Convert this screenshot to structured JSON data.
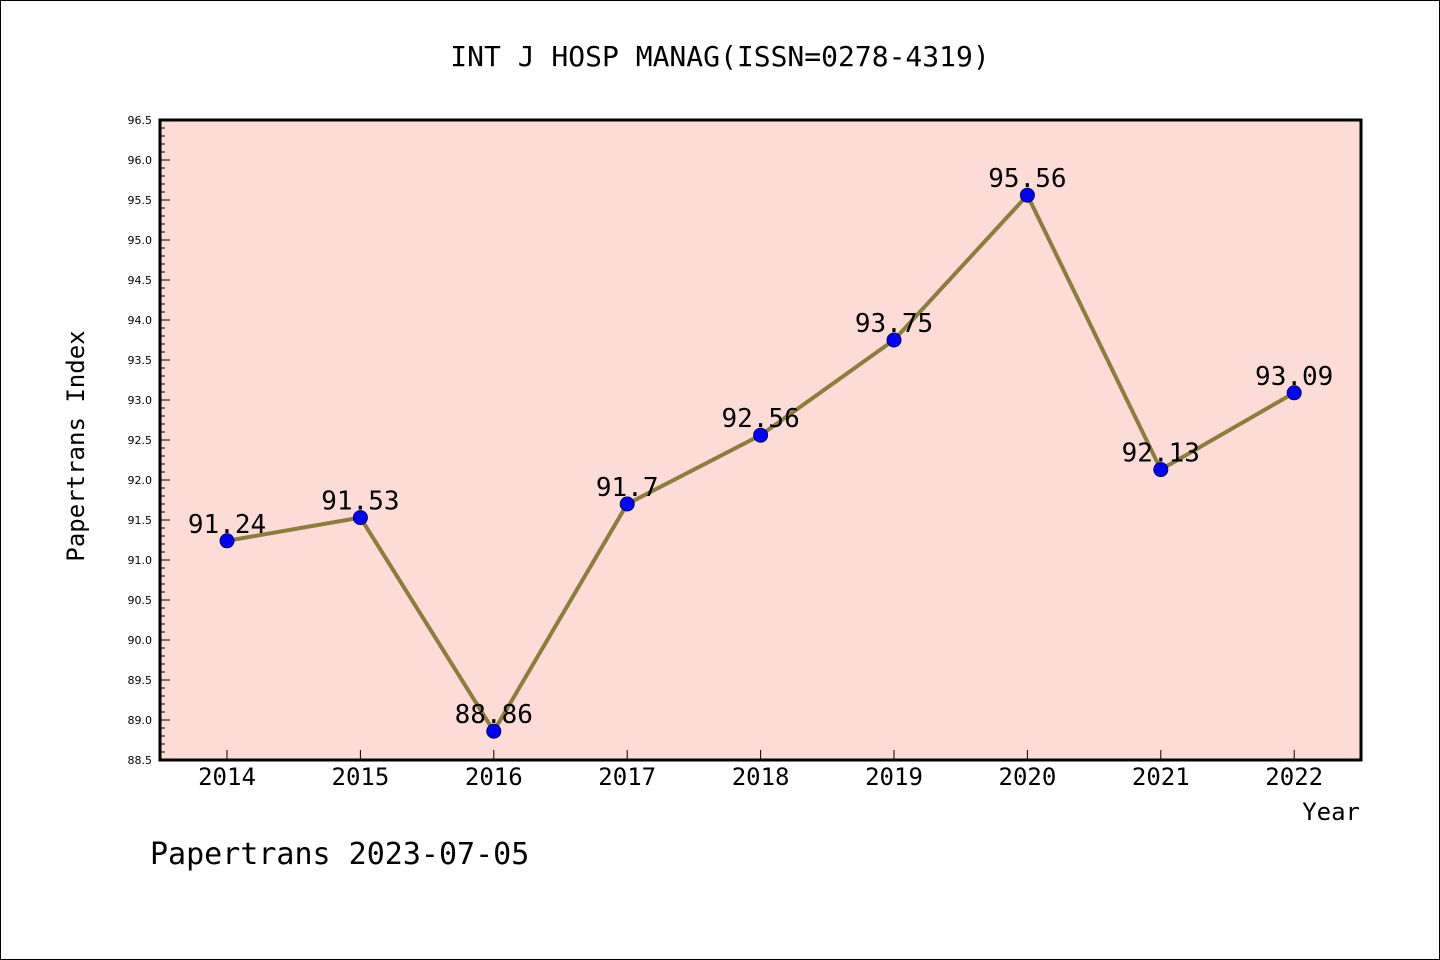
{
  "chart_data": {
    "type": "line",
    "title": "INT J HOSP MANAG(ISSN=0278-4319)",
    "xlabel": "Year",
    "ylabel": "Papertrans Index",
    "footer": "Papertrans 2023-07-05",
    "categories": [
      "2014",
      "2015",
      "2016",
      "2017",
      "2018",
      "2019",
      "2020",
      "2021",
      "2022"
    ],
    "series": [
      {
        "values": [
          91.24,
          91.53,
          88.86,
          91.7,
          92.56,
          93.75,
          95.56,
          92.13,
          93.09
        ],
        "labels": [
          "91.24",
          "91.53",
          "88.86",
          "91.7",
          "92.56",
          "93.75",
          "95.56",
          "92.13",
          "93.09"
        ],
        "line_color": "#8b7d3a",
        "marker_color": "#0000ff"
      }
    ],
    "ylim": [
      88.5,
      96.5
    ],
    "yticks": [
      "88.5",
      "89.0",
      "89.5",
      "90.0",
      "90.5",
      "91.0",
      "91.5",
      "92.0",
      "92.5",
      "93.0",
      "93.5",
      "94.0",
      "94.5",
      "95.0",
      "95.5",
      "96.0",
      "96.5"
    ],
    "plot_background": "#fddcd8",
    "grid": false,
    "legend": "none"
  }
}
